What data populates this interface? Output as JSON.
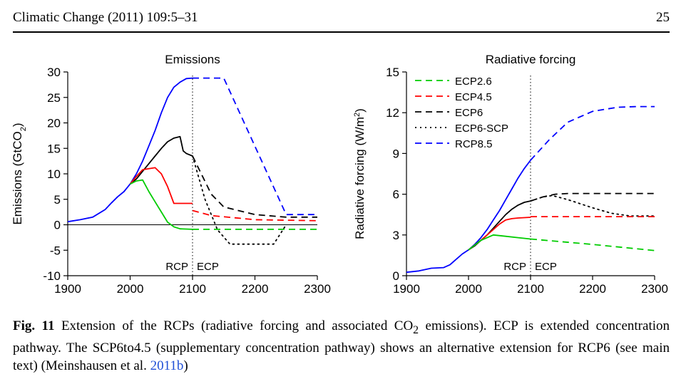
{
  "header": {
    "journal": "Climatic Change (2011) 109:5–31",
    "page_number": "25"
  },
  "chart_data": [
    {
      "type": "line",
      "title": "Emissions",
      "ylabel": "Emissions (GtCO2)",
      "ylim": [
        -10,
        30
      ],
      "xlim": [
        1900,
        2300
      ],
      "x_ticks": [
        "1900",
        "2000",
        "2100",
        "2200",
        "2300"
      ],
      "y_ticks": [
        "-10",
        "-5",
        "0",
        "5",
        "10",
        "15",
        "20",
        "25",
        "30"
      ],
      "annotations": [
        "RCP",
        "ECP"
      ],
      "annotation_x": 2100,
      "series": [
        {
          "color": "#0000ff",
          "style": "solid",
          "x": [
            1900,
            1920,
            1940,
            1960,
            1970,
            1980,
            1990,
            2000,
            2010,
            2020,
            2030,
            2040,
            2050,
            2060,
            2070,
            2080,
            2090,
            2100
          ],
          "y": [
            0.6,
            1.0,
            1.5,
            3.0,
            4.3,
            5.5,
            6.5,
            8.0,
            10,
            12.5,
            15.5,
            18.5,
            22,
            25,
            27,
            28,
            28.7,
            28.8
          ]
        },
        {
          "color": "#0000ff",
          "style": "dashed",
          "x": [
            2100,
            2150,
            2250,
            2300
          ],
          "y": [
            28.8,
            28.8,
            2.0,
            2.0
          ]
        },
        {
          "color": "#000000",
          "style": "solid",
          "x": [
            2000,
            2010,
            2020,
            2030,
            2040,
            2050,
            2060,
            2070,
            2080,
            2085,
            2090,
            2100
          ],
          "y": [
            8,
            9,
            10.5,
            12,
            13.5,
            15,
            16.3,
            17,
            17.3,
            14.5,
            14,
            13.5
          ]
        },
        {
          "color": "#000000",
          "style": "dashed",
          "x": [
            2100,
            2130,
            2150,
            2200,
            2250,
            2300
          ],
          "y": [
            13.5,
            6,
            3.5,
            2,
            1.5,
            1.5
          ]
        },
        {
          "color": "#000000",
          "style": "dotted",
          "x": [
            2100,
            2120,
            2140,
            2160,
            2230,
            2250
          ],
          "y": [
            13.5,
            5,
            -1,
            -3.8,
            -3.8,
            0
          ]
        },
        {
          "color": "#ff0000",
          "style": "solid",
          "x": [
            2000,
            2010,
            2020,
            2030,
            2040,
            2050,
            2060,
            2070,
            2080,
            2090,
            2100
          ],
          "y": [
            8,
            9.5,
            10.8,
            11,
            11.2,
            10,
            7.5,
            4.2,
            4.2,
            4.2,
            4.2
          ]
        },
        {
          "color": "#ff0000",
          "style": "dashed",
          "x": [
            2100,
            2130,
            2200,
            2300
          ],
          "y": [
            2.8,
            1.8,
            1.0,
            0.8
          ]
        },
        {
          "color": "#00cc00",
          "style": "solid",
          "x": [
            2000,
            2010,
            2020,
            2030,
            2040,
            2050,
            2060,
            2070,
            2080,
            2100
          ],
          "y": [
            8,
            8.6,
            8.8,
            6.5,
            4.5,
            2.5,
            0.5,
            -0.4,
            -0.8,
            -0.9
          ]
        },
        {
          "color": "#00cc00",
          "style": "dashed",
          "x": [
            2100,
            2300
          ],
          "y": [
            -0.9,
            -0.9
          ]
        }
      ]
    },
    {
      "type": "line",
      "title": "Radiative forcing",
      "ylabel": "Radiative forcing (W/m2)",
      "ylim": [
        0,
        15
      ],
      "xlim": [
        1900,
        2300
      ],
      "x_ticks": [
        "1900",
        "2000",
        "2100",
        "2200",
        "2300"
      ],
      "y_ticks": [
        "0",
        "3",
        "6",
        "9",
        "12",
        "15"
      ],
      "annotations": [
        "RCP",
        "ECP"
      ],
      "annotation_x": 2100,
      "legend": {
        "placement": "top-left",
        "entries": [
          {
            "name": "ECP2.6",
            "color": "#00cc00",
            "style": "dashed"
          },
          {
            "name": "ECP4.5",
            "color": "#ff0000",
            "style": "dashed"
          },
          {
            "name": "ECP6",
            "color": "#000000",
            "style": "dashed"
          },
          {
            "name": "ECP6-SCP",
            "color": "#000000",
            "style": "dotted"
          },
          {
            "name": "RCP8.5",
            "color": "#0000ff",
            "style": "dashed"
          }
        ]
      },
      "series": [
        {
          "color": "#0000ff",
          "style": "solid",
          "x": [
            1900,
            1920,
            1940,
            1960,
            1970,
            1980,
            1990,
            2000,
            2010,
            2020,
            2030,
            2040,
            2050,
            2060,
            2070,
            2080,
            2090,
            2100
          ],
          "y": [
            0.25,
            0.35,
            0.55,
            0.6,
            0.8,
            1.2,
            1.6,
            1.9,
            2.3,
            2.8,
            3.4,
            4.1,
            4.8,
            5.6,
            6.4,
            7.2,
            7.9,
            8.5
          ]
        },
        {
          "color": "#0000ff",
          "style": "dashed",
          "x": [
            2100,
            2130,
            2160,
            2200,
            2240,
            2270,
            2300
          ],
          "y": [
            8.5,
            10,
            11.3,
            12.1,
            12.4,
            12.45,
            12.45
          ]
        },
        {
          "color": "#000000",
          "style": "solid",
          "x": [
            2000,
            2010,
            2020,
            2030,
            2040,
            2050,
            2060,
            2070,
            2080,
            2090,
            2100
          ],
          "y": [
            1.9,
            2.2,
            2.6,
            3.0,
            3.5,
            4.0,
            4.5,
            4.9,
            5.2,
            5.4,
            5.5
          ]
        },
        {
          "color": "#000000",
          "style": "dashed",
          "x": [
            2100,
            2120,
            2140,
            2160,
            2200,
            2300
          ],
          "y": [
            5.5,
            5.8,
            6.0,
            6.05,
            6.05,
            6.05
          ]
        },
        {
          "color": "#000000",
          "style": "dotted",
          "x": [
            2100,
            2120,
            2135,
            2160,
            2200,
            2230,
            2260,
            2300
          ],
          "y": [
            5.5,
            5.8,
            5.9,
            5.6,
            5.0,
            4.6,
            4.4,
            4.4
          ]
        },
        {
          "color": "#ff0000",
          "style": "solid",
          "x": [
            2000,
            2020,
            2040,
            2050,
            2060,
            2070,
            2080,
            2100
          ],
          "y": [
            1.9,
            2.6,
            3.4,
            3.8,
            4.1,
            4.2,
            4.25,
            4.3
          ]
        },
        {
          "color": "#ff0000",
          "style": "dashed",
          "x": [
            2100,
            2300
          ],
          "y": [
            4.35,
            4.35
          ]
        },
        {
          "color": "#00cc00",
          "style": "solid",
          "x": [
            2000,
            2020,
            2040,
            2060,
            2080,
            2100
          ],
          "y": [
            1.9,
            2.6,
            3.0,
            2.9,
            2.8,
            2.7
          ]
        },
        {
          "color": "#00cc00",
          "style": "dashed",
          "x": [
            2100,
            2200,
            2300
          ],
          "y": [
            2.7,
            2.3,
            1.85
          ]
        }
      ]
    }
  ],
  "caption": {
    "label": "Fig. 11",
    "text_a": "Extension of the RCPs (radiative forcing and associated CO",
    "sub": "2",
    "text_b": "emissions). ECP is extended concentration pathway. The SCP6to4.5 (supplementary concentration pathway) shows an alternative extension for RCP6 (see main text) (Meinshausen et al.",
    "link": "2011b",
    "tail": ")"
  }
}
